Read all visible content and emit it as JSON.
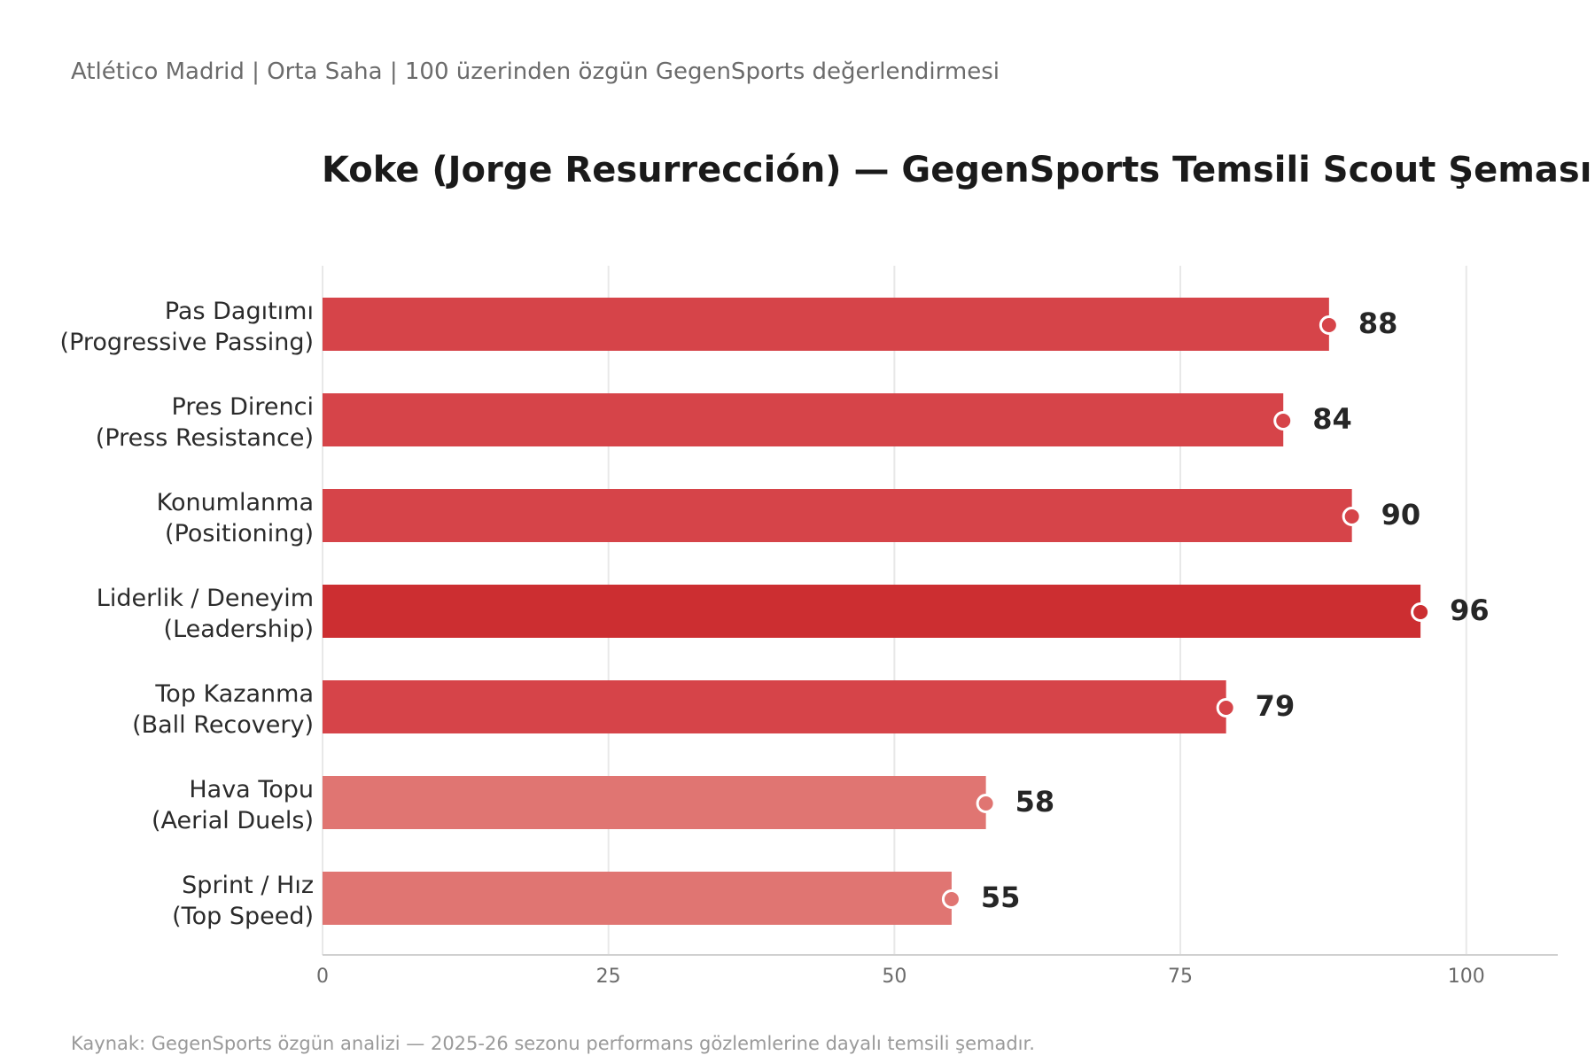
{
  "header": {
    "subtitle": "Atlético Madrid  |  Orta Saha  |  100 üzerinden özgün GegenSports değerlendirmesi",
    "title": "Koke (Jorge Resurrección) — GegenSports Temsili Scout Şeması"
  },
  "footer": {
    "source": "Kaynak: GegenSports özgün analizi — 2025-26 sezonu performans gözlemlerine dayalı temsili şemadır."
  },
  "colors": {
    "bar_strong": "#cc2e31",
    "bar_medium": "#d64449",
    "bar_light": "#e07572",
    "grid": "#e8e8e8",
    "axis": "#d0d0d0"
  },
  "chart_data": {
    "type": "bar",
    "orientation": "horizontal",
    "categories": [
      [
        "Pas Dagıtımı",
        "(Progressive Passing)"
      ],
      [
        "Pres Direnci",
        "(Press Resistance)"
      ],
      [
        "Konumlanma",
        "(Positioning)"
      ],
      [
        "Liderlik / Deneyim",
        "(Leadership)"
      ],
      [
        "Top Kazanma",
        "(Ball Recovery)"
      ],
      [
        "Hava Topu",
        "(Aerial Duels)"
      ],
      [
        "Sprint / Hız",
        "(Top Speed)"
      ]
    ],
    "values": [
      88,
      84,
      90,
      96,
      79,
      58,
      55
    ],
    "xlim": [
      0,
      108
    ],
    "xticks": [
      0,
      25,
      50,
      75,
      100
    ],
    "grid": true,
    "value_labels": true,
    "xlabel": "",
    "ylabel": ""
  }
}
